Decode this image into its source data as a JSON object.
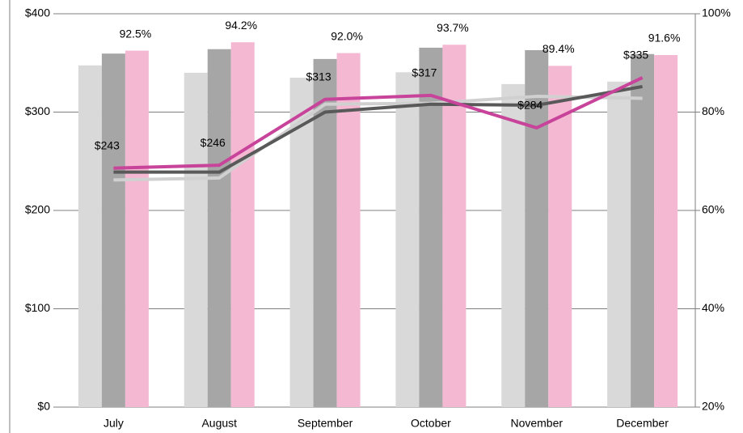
{
  "chart_data": {
    "type": "bar-line",
    "categories": [
      "July",
      "August",
      "September",
      "October",
      "November",
      "December"
    ],
    "series": [
      {
        "kind": "bar",
        "axis": "y2",
        "color": "#d9d9d9",
        "values": [
          89.5,
          88.0,
          87.0,
          88.1,
          85.7,
          86.2
        ]
      },
      {
        "kind": "bar",
        "axis": "y2",
        "color": "#a6a6a6",
        "values": [
          91.9,
          92.8,
          90.8,
          93.1,
          92.6,
          91.8
        ]
      },
      {
        "kind": "bar",
        "axis": "y2",
        "color": "#f4b8d2",
        "values": [
          92.5,
          94.2,
          92.0,
          93.7,
          89.4,
          91.6
        ],
        "value_labels": [
          "92.5%",
          "94.2%",
          "92.0%",
          "93.7%",
          "89.4%",
          "91.6%"
        ]
      },
      {
        "kind": "line",
        "axis": "y",
        "color": "#d0d0d0",
        "values": [
          231,
          233,
          308,
          309,
          316,
          314
        ]
      },
      {
        "kind": "line",
        "axis": "y",
        "color": "#595959",
        "values": [
          239,
          239,
          300,
          308,
          307,
          326
        ]
      },
      {
        "kind": "line",
        "axis": "y",
        "color": "#c8449a",
        "values": [
          243,
          246,
          313,
          317,
          284,
          335
        ],
        "value_labels": [
          "$243",
          "$246",
          "$313",
          "$317",
          "$284",
          "$335"
        ]
      }
    ],
    "ylim": [
      0,
      400
    ],
    "yticks": [
      {
        "value": 0,
        "label": "$0"
      },
      {
        "value": 100,
        "label": "$100"
      },
      {
        "value": 200,
        "label": "$200"
      },
      {
        "value": 300,
        "label": "$300"
      },
      {
        "value": 400,
        "label": "$400"
      }
    ],
    "y2lim": [
      20,
      100
    ],
    "y2ticks": [
      {
        "value": 20,
        "label": "20%"
      },
      {
        "value": 40,
        "label": "40%"
      },
      {
        "value": 60,
        "label": "60%"
      },
      {
        "value": 80,
        "label": "80%"
      },
      {
        "value": 100,
        "label": "100%"
      }
    ],
    "grid": true
  }
}
